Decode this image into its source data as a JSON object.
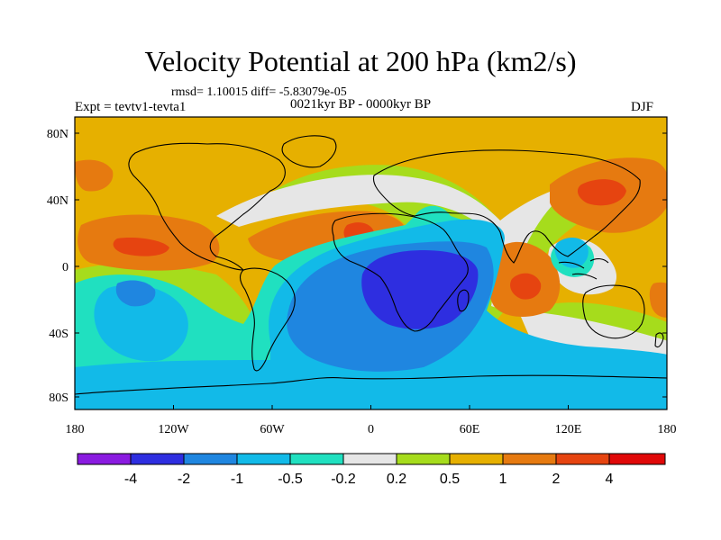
{
  "header": {
    "title": "Velocity Potential at 200 hPa (km2/s)",
    "stats": "rmsd= 1.10015 diff= -5.83079e-05",
    "period": "0021kyr BP - 0000kyr BP",
    "experiment": "Expt = tevtv1-tevta1",
    "season": "DJF"
  },
  "axes": {
    "x_ticks": [
      "180",
      "120W",
      "60W",
      "0",
      "60E",
      "120E",
      "180"
    ],
    "y_ticks": [
      "80N",
      "40N",
      "0",
      "40S",
      "80S"
    ]
  },
  "colorbar": {
    "levels": [
      "-4",
      "-2",
      "-1",
      "-0.5",
      "-0.2",
      "0.2",
      "0.5",
      "1",
      "2",
      "4"
    ],
    "colors": [
      "#8a1be0",
      "#2e2ee0",
      "#1f86e0",
      "#12bae8",
      "#20e0c0",
      "#e6e6e6",
      "#a6dc1c",
      "#e6b000",
      "#e67a10",
      "#e64410",
      "#e00808"
    ]
  },
  "map": {
    "field_colors": {
      "background": "#e6b000",
      "strong_pos": "#e67a10",
      "very_pos": "#e64410",
      "weak_pos": "#a6dc1c",
      "neutral": "#e6e6e6",
      "weak_neg": "#20e0c0",
      "neg": "#12bae8",
      "mid_neg": "#1f86e0",
      "strong_neg": "#2e2ee0"
    },
    "coastline_color": "#000000"
  }
}
